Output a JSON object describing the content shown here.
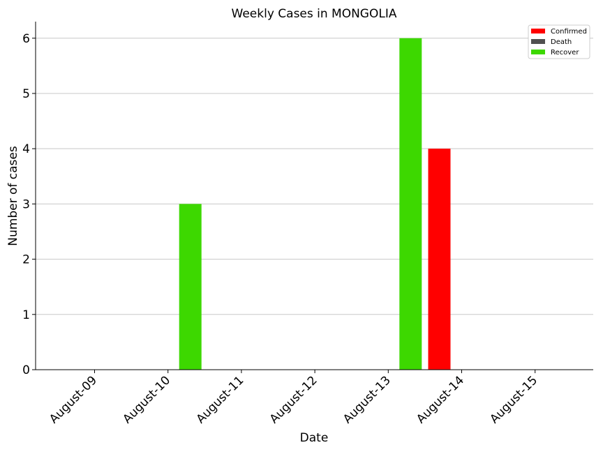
{
  "chart_data": {
    "type": "bar",
    "title": "Weekly Cases in MONGOLIA",
    "xlabel": "Date",
    "ylabel": "Number of cases",
    "categories": [
      "August-09",
      "August-10",
      "August-11",
      "August-12",
      "August-13",
      "August-14",
      "August-15"
    ],
    "series": [
      {
        "name": "Confirmed",
        "color": "#ff0000",
        "values": [
          0,
          0,
          0,
          0,
          0,
          4,
          0
        ]
      },
      {
        "name": "Death",
        "color": "#505050",
        "values": [
          0,
          0,
          0,
          0,
          0,
          0,
          0
        ]
      },
      {
        "name": "Recover",
        "color": "#3dd800",
        "values": [
          0,
          3,
          0,
          0,
          6,
          0,
          0
        ]
      }
    ],
    "ylim": [
      0,
      6.3
    ],
    "yticks": [
      0,
      1,
      2,
      3,
      4,
      5,
      6
    ],
    "grid": "y",
    "legend": "top-right"
  }
}
